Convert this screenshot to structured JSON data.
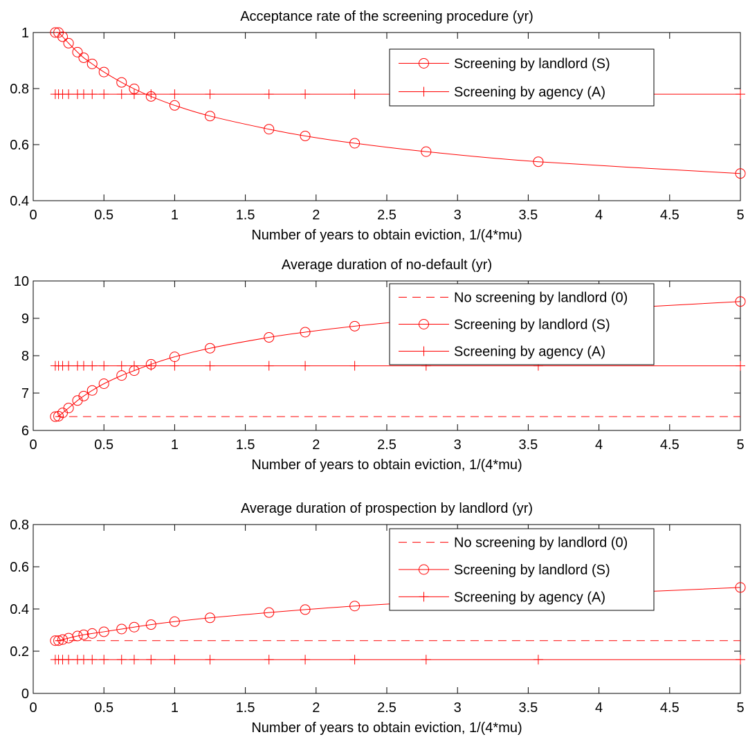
{
  "style": {
    "line_color": "#ff0000",
    "axes_color": "#000000",
    "background": "#ffffff"
  },
  "chart_data": [
    {
      "type": "line",
      "title": "Acceptance rate of the screening procedure (yr)",
      "xlabel": "Number of years to obtain eviction, 1/(4*mu)",
      "ylabel": "",
      "xlim": [
        0,
        5
      ],
      "ylim": [
        0.4,
        1
      ],
      "xticks": [
        "0",
        "0.5",
        "1",
        "1.5",
        "2",
        "2.5",
        "3",
        "3.5",
        "4",
        "4.5",
        "5"
      ],
      "yticks": [
        "0.4",
        "0.6",
        "0.8",
        "1"
      ],
      "legend_position": "top-right",
      "x": [
        0.156,
        0.179,
        0.208,
        0.25,
        0.313,
        0.357,
        0.417,
        0.5,
        0.625,
        0.714,
        0.833,
        1.0,
        1.25,
        1.667,
        1.923,
        2.273,
        2.778,
        3.571,
        5.0
      ],
      "series": [
        {
          "name": "Screening by landlord (S)",
          "marker": "circle",
          "dash": "solid",
          "values": [
            1.0,
            1.0,
            0.985,
            0.962,
            0.93,
            0.91,
            0.888,
            0.859,
            0.822,
            0.799,
            0.772,
            0.74,
            0.702,
            0.655,
            0.631,
            0.605,
            0.575,
            0.539,
            0.497
          ]
        },
        {
          "name": "Screening by agency (A)",
          "marker": "plus",
          "dash": "solid",
          "values": [
            0.78,
            0.78,
            0.78,
            0.78,
            0.78,
            0.78,
            0.78,
            0.78,
            0.78,
            0.78,
            0.78,
            0.78,
            0.78,
            0.78,
            0.78,
            0.78,
            0.78,
            0.78,
            0.78
          ]
        }
      ]
    },
    {
      "type": "line",
      "title": "Average duration of no-default (yr)",
      "xlabel": "Number of years to obtain eviction, 1/(4*mu)",
      "ylabel": "",
      "xlim": [
        0,
        5
      ],
      "ylim": [
        6,
        10
      ],
      "xticks": [
        "0",
        "0.5",
        "1",
        "1.5",
        "2",
        "2.5",
        "3",
        "3.5",
        "4",
        "4.5",
        "5"
      ],
      "yticks": [
        "6",
        "7",
        "8",
        "9",
        "10"
      ],
      "legend_position": "top-right",
      "x": [
        0.156,
        0.179,
        0.208,
        0.25,
        0.313,
        0.357,
        0.417,
        0.5,
        0.625,
        0.714,
        0.833,
        1.0,
        1.25,
        1.667,
        1.923,
        2.273,
        2.778,
        3.571,
        5.0
      ],
      "series": [
        {
          "name": "No screening by landlord (0)",
          "marker": "none",
          "dash": "dashed",
          "values": [
            6.37,
            6.37,
            6.37,
            6.37,
            6.37,
            6.37,
            6.37,
            6.37,
            6.37,
            6.37,
            6.37,
            6.37,
            6.37,
            6.37,
            6.37,
            6.37,
            6.37,
            6.37,
            6.37
          ]
        },
        {
          "name": "Screening by landlord (S)",
          "marker": "circle",
          "dash": "solid",
          "values": [
            6.37,
            6.38,
            6.47,
            6.6,
            6.8,
            6.92,
            7.07,
            7.25,
            7.47,
            7.6,
            7.77,
            7.97,
            8.2,
            8.49,
            8.63,
            8.79,
            8.97,
            9.15,
            9.45
          ]
        },
        {
          "name": "Screening by agency (A)",
          "marker": "plus",
          "dash": "solid",
          "values": [
            7.73,
            7.73,
            7.73,
            7.73,
            7.73,
            7.73,
            7.73,
            7.73,
            7.73,
            7.73,
            7.73,
            7.73,
            7.73,
            7.73,
            7.73,
            7.73,
            7.73,
            7.73,
            7.73
          ]
        }
      ]
    },
    {
      "type": "line",
      "title": "Average duration of prospection by landlord (yr)",
      "xlabel": "Number of years to obtain eviction, 1/(4*mu)",
      "ylabel": "",
      "xlim": [
        0,
        5
      ],
      "ylim": [
        0,
        0.8
      ],
      "xticks": [
        "0",
        "0.5",
        "1",
        "1.5",
        "2",
        "2.5",
        "3",
        "3.5",
        "4",
        "4.5",
        "5"
      ],
      "yticks": [
        "0",
        "0.2",
        "0.4",
        "0.6",
        "0.8"
      ],
      "legend_position": "top-right",
      "x": [
        0.156,
        0.179,
        0.208,
        0.25,
        0.313,
        0.357,
        0.417,
        0.5,
        0.625,
        0.714,
        0.833,
        1.0,
        1.25,
        1.667,
        1.923,
        2.273,
        2.778,
        3.571,
        5.0
      ],
      "series": [
        {
          "name": "No screening by landlord (0)",
          "marker": "none",
          "dash": "dashed",
          "values": [
            0.25,
            0.25,
            0.25,
            0.25,
            0.25,
            0.25,
            0.25,
            0.25,
            0.25,
            0.25,
            0.25,
            0.25,
            0.25,
            0.25,
            0.25,
            0.25,
            0.25,
            0.25,
            0.25
          ]
        },
        {
          "name": "Screening by landlord (S)",
          "marker": "circle",
          "dash": "solid",
          "values": [
            0.25,
            0.25,
            0.255,
            0.262,
            0.272,
            0.278,
            0.284,
            0.292,
            0.305,
            0.314,
            0.326,
            0.34,
            0.358,
            0.383,
            0.397,
            0.414,
            0.434,
            0.46,
            0.502
          ]
        },
        {
          "name": "Screening by agency (A)",
          "marker": "plus",
          "dash": "solid",
          "values": [
            0.16,
            0.16,
            0.16,
            0.16,
            0.16,
            0.16,
            0.16,
            0.16,
            0.16,
            0.16,
            0.16,
            0.16,
            0.16,
            0.16,
            0.16,
            0.16,
            0.16,
            0.16,
            0.16
          ]
        }
      ]
    }
  ]
}
